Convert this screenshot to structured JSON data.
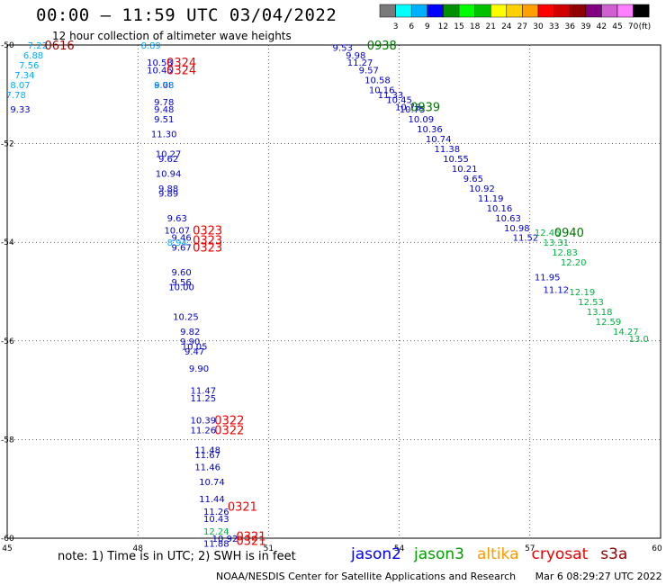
{
  "title": "00:00 — 11:59 UTC 03/04/2022",
  "subtitle": "12 hour collection of altimeter wave heights",
  "colorbar": {
    "unit": "(ft)",
    "colors": [
      "#7a7a7a",
      "#00ffff",
      "#00b0ff",
      "#0000ff",
      "#009000",
      "#00ff00",
      "#00c000",
      "#ffff00",
      "#ffd000",
      "#ffa000",
      "#ff0000",
      "#d00000",
      "#900000",
      "#800080",
      "#d060d0",
      "#ff80ff",
      "#000000"
    ],
    "labels": [
      "3",
      "6",
      "9",
      "12",
      "15",
      "18",
      "21",
      "24",
      "27",
      "30",
      "33",
      "36",
      "39",
      "42",
      "45",
      "70"
    ]
  },
  "map": {
    "lon_range": [
      45,
      60
    ],
    "lat_range": [
      -60,
      -50
    ],
    "lon_ticks": [
      "45",
      "48",
      "51",
      "54",
      "57",
      "60"
    ],
    "lat_ticks": [
      "-50",
      "-52",
      "-54",
      "-56",
      "-58",
      "-60"
    ],
    "lon_tick_values": [
      45,
      48,
      51,
      54,
      57,
      60
    ],
    "lat_tick_values": [
      -50,
      -52,
      -54,
      -56,
      -58,
      -60
    ]
  },
  "chart_data": {
    "type": "scatter",
    "series": [
      {
        "name": "jason2",
        "color": "#0000cc",
        "points": [
          [
            45.3,
            -51.3,
            "9.33"
          ],
          [
            48.5,
            -50.35,
            "10.58"
          ],
          [
            48.5,
            -50.5,
            "10.45"
          ],
          [
            48.6,
            -50.8,
            "9.08"
          ],
          [
            48.6,
            -51.15,
            "9.78"
          ],
          [
            48.6,
            -51.3,
            "9.48"
          ],
          [
            48.6,
            -51.5,
            "9.51"
          ],
          [
            48.6,
            -51.8,
            "11.30"
          ],
          [
            48.7,
            -52.2,
            "10.27"
          ],
          [
            48.7,
            -52.3,
            "9.62"
          ],
          [
            48.7,
            -52.6,
            "10.94"
          ],
          [
            48.7,
            -52.9,
            "9.88"
          ],
          [
            48.7,
            -53.0,
            "9.89"
          ],
          [
            48.9,
            -53.5,
            "9.63"
          ],
          [
            48.9,
            -53.75,
            "10.07"
          ],
          [
            49.0,
            -53.9,
            "9.46"
          ],
          [
            49.0,
            -54.1,
            "9.67"
          ],
          [
            49.0,
            -54.6,
            "9.60"
          ],
          [
            49.0,
            -54.8,
            "9.56"
          ],
          [
            49.0,
            -54.9,
            "10.00"
          ],
          [
            49.1,
            -55.5,
            "10.25"
          ],
          [
            49.2,
            -55.8,
            "9.82"
          ],
          [
            49.2,
            -56.0,
            "9.90"
          ],
          [
            49.3,
            -56.1,
            "10.05"
          ],
          [
            49.3,
            -56.2,
            "9.47"
          ],
          [
            49.4,
            -56.55,
            "9.90"
          ],
          [
            49.5,
            -57.0,
            "11.47"
          ],
          [
            49.5,
            -57.15,
            "11.25"
          ],
          [
            49.5,
            -57.6,
            "10.39"
          ],
          [
            49.5,
            -57.8,
            "11.26"
          ],
          [
            49.6,
            -58.2,
            "11.48"
          ],
          [
            49.6,
            -58.3,
            "11.67"
          ],
          [
            49.6,
            -58.55,
            "11.46"
          ],
          [
            49.7,
            -58.85,
            "10.74"
          ],
          [
            49.7,
            -59.2,
            "11.44"
          ],
          [
            49.8,
            -59.45,
            "11.26"
          ],
          [
            49.8,
            -59.6,
            "10.43"
          ],
          [
            49.8,
            -60.1,
            "11.88"
          ],
          [
            50.0,
            -60.0,
            "10.92"
          ],
          [
            52.7,
            -50.05,
            "9.53"
          ],
          [
            53.0,
            -50.2,
            "9.98"
          ],
          [
            53.1,
            -50.35,
            "11.27"
          ],
          [
            53.3,
            -50.5,
            "9.57"
          ],
          [
            53.5,
            -50.7,
            "10.58"
          ],
          [
            53.6,
            -50.9,
            "10.16"
          ],
          [
            53.8,
            -51.0,
            "11.33"
          ],
          [
            54.0,
            -51.1,
            "10.45"
          ],
          [
            54.2,
            -51.25,
            "10.78"
          ],
          [
            54.3,
            -51.3,
            "10.75"
          ],
          [
            54.5,
            -51.5,
            "10.09"
          ],
          [
            54.7,
            -51.7,
            "10.36"
          ],
          [
            54.9,
            -51.9,
            "10.74"
          ],
          [
            55.1,
            -52.1,
            "11.38"
          ],
          [
            55.3,
            -52.3,
            "10.55"
          ],
          [
            55.5,
            -52.5,
            "10.21"
          ],
          [
            55.7,
            -52.7,
            "9.65"
          ],
          [
            55.9,
            -52.9,
            "10.92"
          ],
          [
            56.1,
            -53.1,
            "11.19"
          ],
          [
            56.3,
            -53.3,
            "10.16"
          ],
          [
            56.5,
            -53.5,
            "10.63"
          ],
          [
            56.7,
            -53.7,
            "10.98"
          ],
          [
            56.9,
            -53.9,
            "11.52"
          ],
          [
            57.4,
            -54.7,
            "11.95"
          ],
          [
            57.6,
            -54.95,
            "11.12"
          ]
        ]
      },
      {
        "name": "jason3",
        "color": "#00b040",
        "points": [
          [
            57.4,
            -53.8,
            "12.46"
          ],
          [
            57.6,
            -54.0,
            "13.31"
          ],
          [
            57.8,
            -54.2,
            "12.83"
          ],
          [
            58.0,
            -54.4,
            "12.20"
          ],
          [
            58.2,
            -55.0,
            "12.19"
          ],
          [
            58.4,
            -55.2,
            "12.53"
          ],
          [
            58.6,
            -55.4,
            "13.18"
          ],
          [
            58.8,
            -55.6,
            "12.59"
          ],
          [
            59.2,
            -55.8,
            "14.27"
          ],
          [
            59.5,
            -55.95,
            "13.0"
          ],
          [
            49.8,
            -59.85,
            "12.24"
          ]
        ]
      },
      {
        "name": "cryosat",
        "color": "#00aaff",
        "points": [
          [
            45.7,
            -50.0,
            "7.22"
          ],
          [
            45.6,
            -50.2,
            "6.88"
          ],
          [
            45.5,
            -50.4,
            "7.56"
          ],
          [
            45.4,
            -50.6,
            "7.34"
          ],
          [
            45.3,
            -50.8,
            "8.07"
          ],
          [
            45.2,
            -51.0,
            "7.78"
          ],
          [
            48.3,
            -50.0,
            "8.89"
          ],
          [
            48.6,
            -50.8,
            "8.73"
          ],
          [
            48.9,
            -54.0,
            "8.94"
          ]
        ]
      }
    ],
    "pass_labels": [
      {
        "text": "0616",
        "lon": 46.2,
        "lat": -50.0,
        "color": "#8b0000"
      },
      {
        "text": "0324",
        "lon": 49.0,
        "lat": -50.35,
        "color": "#ee0000"
      },
      {
        "text": "0324",
        "lon": 49.0,
        "lat": -50.5,
        "color": "#ee0000"
      },
      {
        "text": "0938",
        "lon": 53.6,
        "lat": -50.0,
        "color": "#007700"
      },
      {
        "text": "0939",
        "lon": 54.6,
        "lat": -51.25,
        "color": "#007700"
      },
      {
        "text": "0323",
        "lon": 49.6,
        "lat": -53.75,
        "color": "#ee0000"
      },
      {
        "text": "0323",
        "lon": 49.6,
        "lat": -53.95,
        "color": "#ee0000"
      },
      {
        "text": "0323",
        "lon": 49.6,
        "lat": -54.1,
        "color": "#ee0000"
      },
      {
        "text": "0940",
        "lon": 57.9,
        "lat": -53.8,
        "color": "#007700"
      },
      {
        "text": "0322",
        "lon": 50.1,
        "lat": -57.6,
        "color": "#ee0000"
      },
      {
        "text": "0322",
        "lon": 50.1,
        "lat": -57.8,
        "color": "#ee0000"
      },
      {
        "text": "0321",
        "lon": 50.4,
        "lat": -59.35,
        "color": "#ee0000"
      },
      {
        "text": "0321",
        "lon": 50.6,
        "lat": -59.95,
        "color": "#ee0000"
      },
      {
        "text": "0321",
        "lon": 50.6,
        "lat": -60.05,
        "color": "#ee0000"
      }
    ]
  },
  "note": "note: 1) Time is in UTC; 2) SWH is in feet",
  "missions": [
    {
      "name": "jason2",
      "color": "#0000ee"
    },
    {
      "name": "jason3",
      "color": "#00a000"
    },
    {
      "name": "altika",
      "color": "#ff9900"
    },
    {
      "name": "cryosat",
      "color": "#ee0000"
    },
    {
      "name": "s3a",
      "color": "#8b0000"
    }
  ],
  "footer": {
    "credit": "NOAA/NESDIS Center for Satellite Applications and Research",
    "timestamp": "Mar  6 08:29:27 UTC 2022"
  }
}
